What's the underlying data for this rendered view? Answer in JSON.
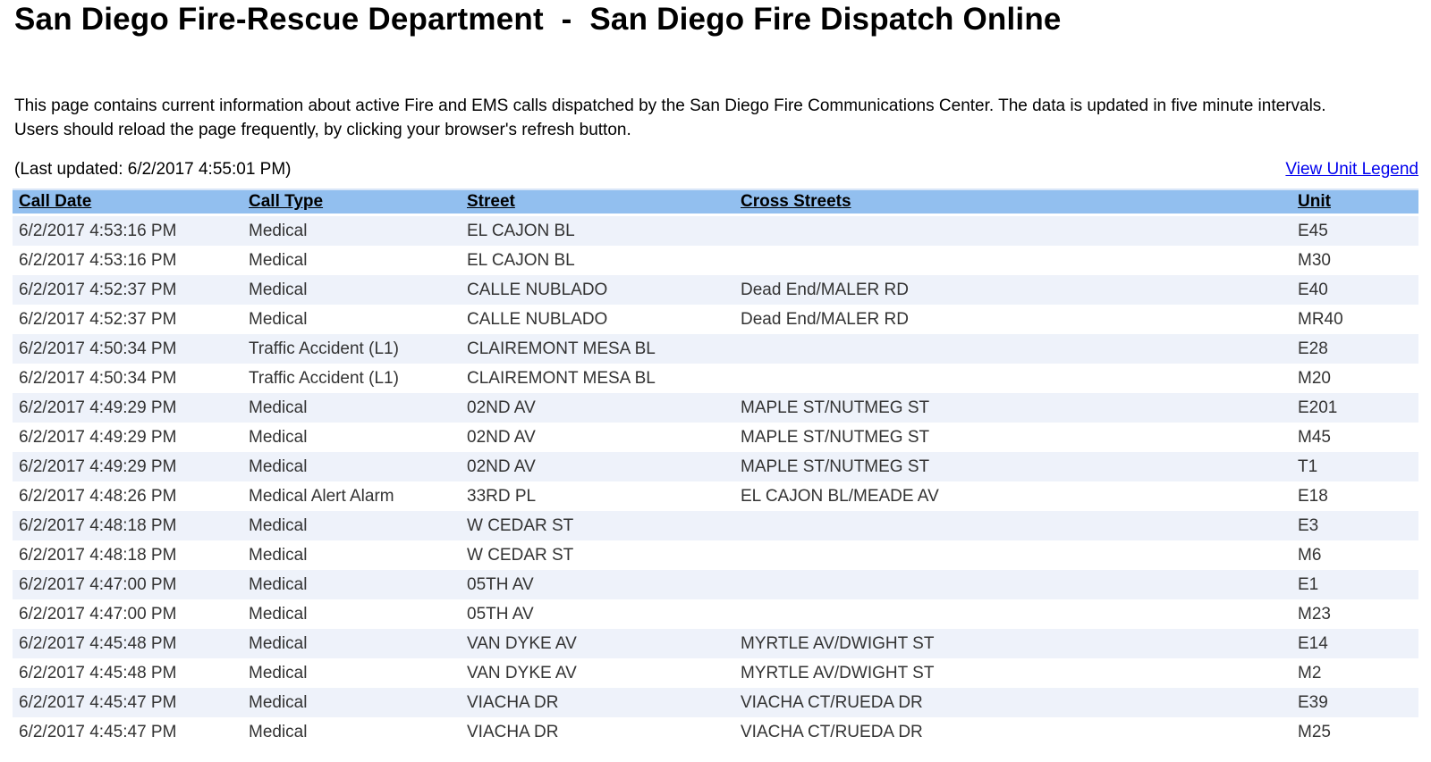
{
  "page": {
    "title": "San Diego Fire-Rescue Department  -  San Diego Fire Dispatch Online",
    "description": "This page contains current information about active Fire and EMS calls dispatched by the San Diego Fire Communications Center. The data is updated in five minute intervals. Users should reload the page frequently, by clicking your browser's refresh button.",
    "last_updated": "(Last updated: 6/2/2017 4:55:01 PM)",
    "legend_link_label": "View Unit Legend"
  },
  "colors": {
    "header_bg": "#92bfef",
    "row_alt_bg": "#eef2fa",
    "link_color": "#0000ee"
  },
  "table": {
    "columns": [
      "Call Date",
      "Call Type",
      "Street",
      "Cross Streets",
      "Unit"
    ],
    "rows": [
      [
        "6/2/2017 4:53:16 PM",
        "Medical",
        "EL CAJON BL",
        "",
        "E45"
      ],
      [
        "6/2/2017 4:53:16 PM",
        "Medical",
        "EL CAJON BL",
        "",
        "M30"
      ],
      [
        "6/2/2017 4:52:37 PM",
        "Medical",
        "CALLE NUBLADO",
        "Dead End/MALER RD",
        "E40"
      ],
      [
        "6/2/2017 4:52:37 PM",
        "Medical",
        "CALLE NUBLADO",
        "Dead End/MALER RD",
        "MR40"
      ],
      [
        "6/2/2017 4:50:34 PM",
        "Traffic Accident (L1)",
        "CLAIREMONT MESA BL",
        "",
        "E28"
      ],
      [
        "6/2/2017 4:50:34 PM",
        "Traffic Accident (L1)",
        "CLAIREMONT MESA BL",
        "",
        "M20"
      ],
      [
        "6/2/2017 4:49:29 PM",
        "Medical",
        "02ND AV",
        "MAPLE ST/NUTMEG ST",
        "E201"
      ],
      [
        "6/2/2017 4:49:29 PM",
        "Medical",
        "02ND AV",
        "MAPLE ST/NUTMEG ST",
        "M45"
      ],
      [
        "6/2/2017 4:49:29 PM",
        "Medical",
        "02ND AV",
        "MAPLE ST/NUTMEG ST",
        "T1"
      ],
      [
        "6/2/2017 4:48:26 PM",
        "Medical Alert Alarm",
        "33RD PL",
        "EL CAJON BL/MEADE AV",
        "E18"
      ],
      [
        "6/2/2017 4:48:18 PM",
        "Medical",
        "W CEDAR ST",
        "",
        "E3"
      ],
      [
        "6/2/2017 4:48:18 PM",
        "Medical",
        "W CEDAR ST",
        "",
        "M6"
      ],
      [
        "6/2/2017 4:47:00 PM",
        "Medical",
        "05TH AV",
        "",
        "E1"
      ],
      [
        "6/2/2017 4:47:00 PM",
        "Medical",
        "05TH AV",
        "",
        "M23"
      ],
      [
        "6/2/2017 4:45:48 PM",
        "Medical",
        "VAN DYKE AV",
        "MYRTLE AV/DWIGHT ST",
        "E14"
      ],
      [
        "6/2/2017 4:45:48 PM",
        "Medical",
        "VAN DYKE AV",
        "MYRTLE AV/DWIGHT ST",
        "M2"
      ],
      [
        "6/2/2017 4:45:47 PM",
        "Medical",
        "VIACHA DR",
        "VIACHA CT/RUEDA DR",
        "E39"
      ],
      [
        "6/2/2017 4:45:47 PM",
        "Medical",
        "VIACHA DR",
        "VIACHA CT/RUEDA DR",
        "M25"
      ]
    ]
  }
}
